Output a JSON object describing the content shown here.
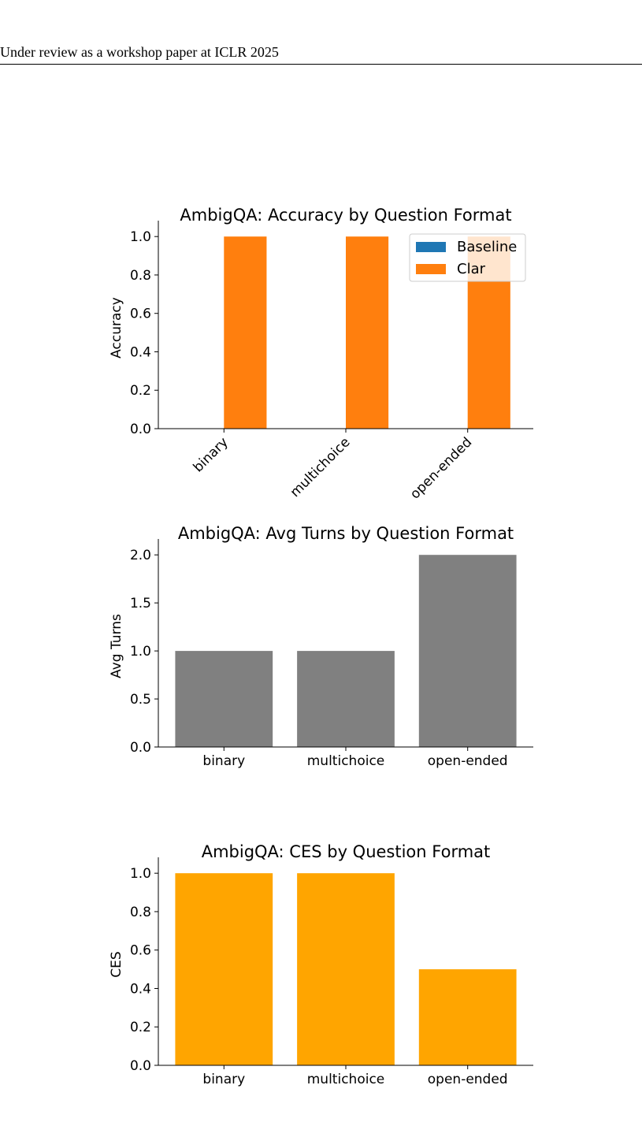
{
  "page": {
    "header_text": "Under review as a workshop paper at ICLR 2025"
  },
  "chart_data": [
    {
      "type": "bar",
      "title": "AmbigQA: Accuracy by Question Format",
      "xlabel": "",
      "ylabel": "Accuracy",
      "categories": [
        "binary",
        "multichoice",
        "open-ended"
      ],
      "series": [
        {
          "name": "Baseline",
          "color": "#1f77b4",
          "values": [
            0,
            0,
            0
          ]
        },
        {
          "name": "Clar",
          "color": "#ff7f0e",
          "values": [
            1.0,
            1.0,
            1.0
          ]
        }
      ],
      "ylim": [
        0,
        1.05
      ],
      "yticks": [
        "0.0",
        "0.2",
        "0.4",
        "0.6",
        "0.8",
        "1.0"
      ],
      "legend": "top-right",
      "xtick_rotation": 45,
      "grid": false
    },
    {
      "type": "bar",
      "title": "AmbigQA: Avg Turns by Question Format",
      "xlabel": "",
      "ylabel": "Avg Turns",
      "categories": [
        "binary",
        "multichoice",
        "open-ended"
      ],
      "values": [
        1.0,
        1.0,
        2.0
      ],
      "color": "#808080",
      "ylim": [
        0,
        2.1
      ],
      "yticks": [
        "0.0",
        "0.5",
        "1.0",
        "1.5",
        "2.0"
      ],
      "grid": false
    },
    {
      "type": "bar",
      "title": "AmbigQA: CES by Question Format",
      "xlabel": "",
      "ylabel": "CES",
      "categories": [
        "binary",
        "multichoice",
        "open-ended"
      ],
      "values": [
        1.0,
        1.0,
        0.5
      ],
      "color": "#ffa500",
      "ylim": [
        0,
        1.05
      ],
      "yticks": [
        "0.0",
        "0.2",
        "0.4",
        "0.6",
        "0.8",
        "1.0"
      ],
      "grid": false
    }
  ]
}
